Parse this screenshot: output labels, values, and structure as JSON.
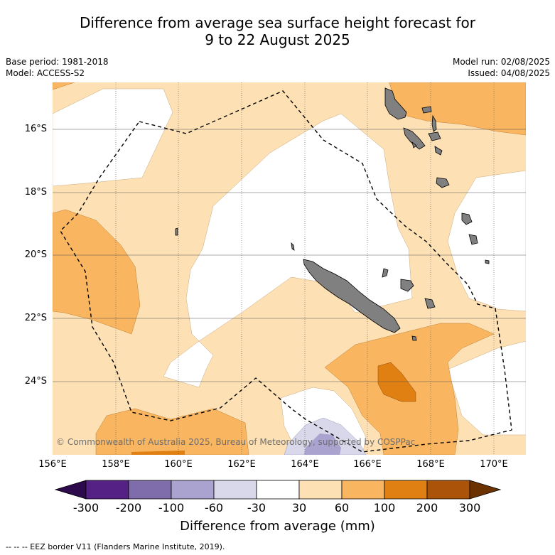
{
  "title": {
    "line1": "Difference from average sea surface height forecast for",
    "line2": "9 to 22 August 2025"
  },
  "meta": {
    "base_period": "Base period: 1981-2018",
    "model": "Model: ACCESS-S2",
    "model_run": "Model run: 02/08/2025",
    "issued": "Issued: 04/08/2025"
  },
  "map": {
    "lon_labels": [
      "156°E",
      "158°E",
      "160°E",
      "162°E",
      "164°E",
      "166°E",
      "168°E",
      "170°E"
    ],
    "lat_labels": [
      "16°S",
      "18°S",
      "20°S",
      "22°S",
      "24°S"
    ],
    "copyright": "© Commonwealth of Australia 2025, Bureau of Meteorology, supported by COSPPac",
    "land_color": "#808080"
  },
  "colorbar": {
    "title": "Difference from average (mm)",
    "tick_labels": [
      "-300",
      "-200",
      "-100",
      "-60",
      "-30",
      "30",
      "60",
      "100",
      "200",
      "300"
    ],
    "colors": {
      "below_-300": "#2d0a4b",
      "-300_-200": "#562184",
      "-200_-100": "#7f6caa",
      "-100_-60": "#aba3cf",
      "-60_-30": "#d8d8ea",
      "-30_30": "#ffffff",
      "30_60": "#fde0b4",
      "60_100": "#f9b55f",
      "100_200": "#e08012",
      "200_300": "#ab5308",
      "above_300": "#6b3200"
    }
  },
  "legend": {
    "eez_label": "--  --  -- EEZ border V11 (Flanders Marine Institute, 2019)."
  }
}
